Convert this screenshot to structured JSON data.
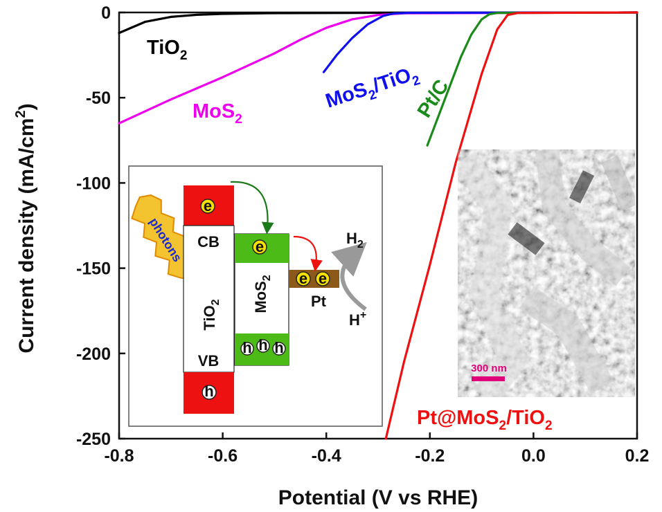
{
  "chart_data": {
    "type": "line",
    "xlabel": "Potential (V vs RHE)",
    "ylabel": "Current density (mA/cm²)",
    "xlim": [
      -0.8,
      0.2
    ],
    "ylim": [
      -250,
      0
    ],
    "x_ticks": [
      "-0.8",
      "-0.6",
      "-0.4",
      "-0.2",
      "0.0",
      "0.2"
    ],
    "y_ticks": [
      "0",
      "-50",
      "-100",
      "-150",
      "-200",
      "-250"
    ],
    "grid": false,
    "series": [
      {
        "name": "TiO₂",
        "color": "#000000",
        "points": [
          [
            -0.8,
            -12
          ],
          [
            -0.75,
            -5.5
          ],
          [
            -0.7,
            -2.6
          ],
          [
            -0.65,
            -1.4
          ],
          [
            -0.6,
            -0.8
          ],
          [
            -0.5,
            -0.4
          ],
          [
            -0.3,
            -0.2
          ],
          [
            0.2,
            0
          ]
        ]
      },
      {
        "name": "MoS₂",
        "color": "#ee00ee",
        "points": [
          [
            -0.8,
            -65
          ],
          [
            -0.7,
            -51
          ],
          [
            -0.6,
            -38
          ],
          [
            -0.5,
            -24
          ],
          [
            -0.45,
            -16
          ],
          [
            -0.4,
            -9
          ],
          [
            -0.35,
            -4
          ],
          [
            -0.3,
            -1.5
          ],
          [
            -0.25,
            -0.5
          ],
          [
            0.2,
            0
          ]
        ]
      },
      {
        "name": "MoS₂/TiO₂",
        "color": "#1010ee",
        "points": [
          [
            -0.405,
            -35
          ],
          [
            -0.38,
            -25
          ],
          [
            -0.35,
            -15
          ],
          [
            -0.32,
            -7
          ],
          [
            -0.29,
            -2
          ],
          [
            -0.27,
            -0.6
          ],
          [
            -0.24,
            -0.2
          ],
          [
            0.2,
            0
          ]
        ]
      },
      {
        "name": "Pt/C",
        "color": "#1a8a1a",
        "points": [
          [
            -0.205,
            -78
          ],
          [
            -0.18,
            -58
          ],
          [
            -0.16,
            -42
          ],
          [
            -0.14,
            -26
          ],
          [
            -0.12,
            -13
          ],
          [
            -0.1,
            -4
          ],
          [
            -0.085,
            -1
          ],
          [
            -0.07,
            -0.3
          ],
          [
            0.2,
            0
          ]
        ]
      },
      {
        "name": "Pt@MoS₂/TiO₂",
        "color": "#ee1111",
        "points": [
          [
            -0.285,
            -250
          ],
          [
            -0.25,
            -205
          ],
          [
            -0.2,
            -148
          ],
          [
            -0.15,
            -88
          ],
          [
            -0.1,
            -36
          ],
          [
            -0.07,
            -10
          ],
          [
            -0.05,
            -1.5
          ],
          [
            -0.03,
            -0.3
          ],
          [
            0.2,
            0
          ]
        ]
      }
    ],
    "series_labels": {
      "tio2": {
        "base": "TiO",
        "sub": "2"
      },
      "mos2": {
        "base": "MoS",
        "sub": "2"
      },
      "mos2tio2": {
        "a": "MoS",
        "a_sub": "2",
        "b": "/TiO",
        "b_sub": "2"
      },
      "ptc": "Pt/C",
      "ptmos2tio2": {
        "a": "Pt@MoS",
        "a_sub": "2",
        "b": "/TiO",
        "b_sub": "2"
      }
    }
  },
  "inset_diagram": {
    "photons": "photons",
    "cb": "CB",
    "vb": "VB",
    "tio2": {
      "base": "TiO",
      "sub": "2"
    },
    "mos2": {
      "base": "MoS",
      "sub": "2"
    },
    "pt": "Pt",
    "h2": {
      "base": "H",
      "sub": "2"
    },
    "hplus": {
      "base": "H",
      "sup": "+"
    },
    "electron": "e",
    "hole": "h",
    "colors": {
      "red": "#ee1111",
      "green": "#4cbb17",
      "brown": "#8b5a1a",
      "yellow": "#f5e000"
    }
  },
  "sem_inset": {
    "scale_bar": "300 nm",
    "scale_color": "#e0007a"
  }
}
